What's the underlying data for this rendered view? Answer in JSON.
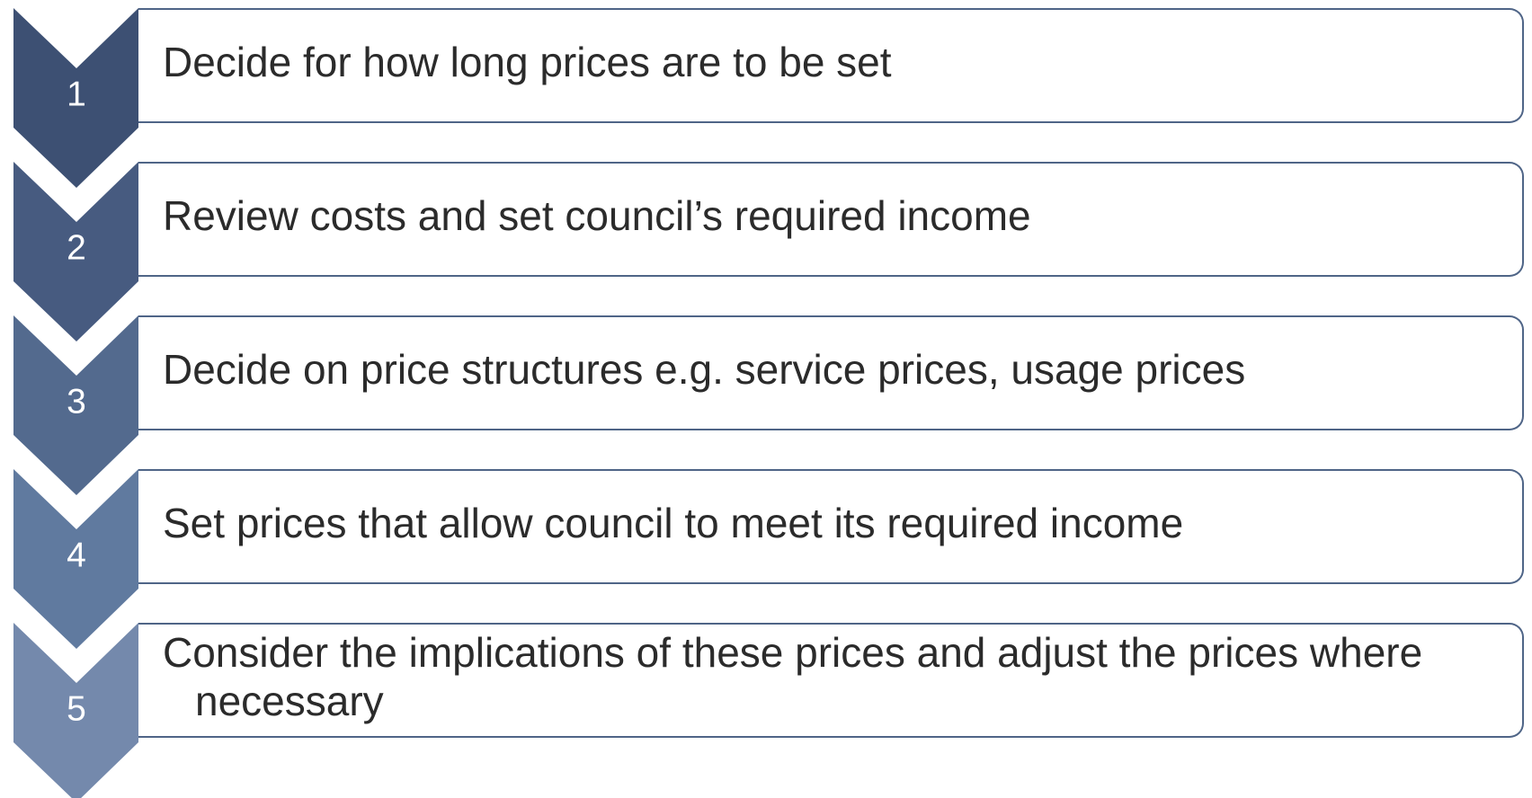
{
  "steps": [
    {
      "number": 1,
      "text": "Decide for how long prices are to be set"
    },
    {
      "number": 2,
      "text": "Review costs and set council’s required income"
    },
    {
      "number": 3,
      "text": "Decide on price structures e.g. service prices, usage prices"
    },
    {
      "number": 4,
      "text": "Set prices that allow council to meet its required income"
    },
    {
      "number": 5,
      "text": "Consider the implications of these prices and adjust the prices where necessary"
    }
  ]
}
